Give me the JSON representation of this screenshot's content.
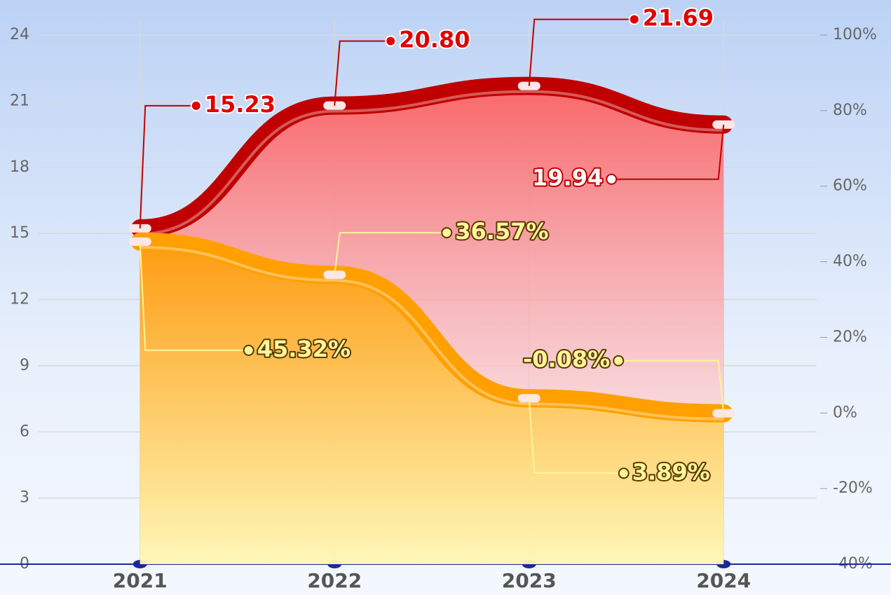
{
  "chart_data": {
    "type": "line",
    "categories": [
      "2021",
      "2022",
      "2023",
      "2024"
    ],
    "series": [
      {
        "color": "#c00000",
        "values": [
          15.23,
          20.8,
          21.69,
          19.94
        ],
        "value_labels": [
          "15.23",
          "20.80",
          "21.69",
          "19.94"
        ]
      },
      {
        "color": "#ffa000",
        "axis": "y2",
        "values": [
          45.32,
          36.57,
          3.89,
          -0.08
        ],
        "value_labels": [
          "45.32%",
          "36.57%",
          "3.89%",
          "-0.08%"
        ]
      }
    ],
    "ylim": [
      0,
      24
    ],
    "yticks": [
      0,
      3,
      6,
      9,
      12,
      15,
      18,
      21,
      24
    ],
    "y2lim": [
      -40,
      100
    ],
    "y2ticks": [
      {
        "value": -40,
        "label": "-40%"
      },
      {
        "value": -20,
        "label": "-20%"
      },
      {
        "value": 0,
        "label": "0%"
      },
      {
        "value": 20,
        "label": "20%"
      },
      {
        "value": 40,
        "label": "40%"
      },
      {
        "value": 60,
        "label": "60%"
      },
      {
        "value": 80,
        "label": "80%"
      },
      {
        "value": 100,
        "label": "100%"
      }
    ],
    "grid": true
  }
}
